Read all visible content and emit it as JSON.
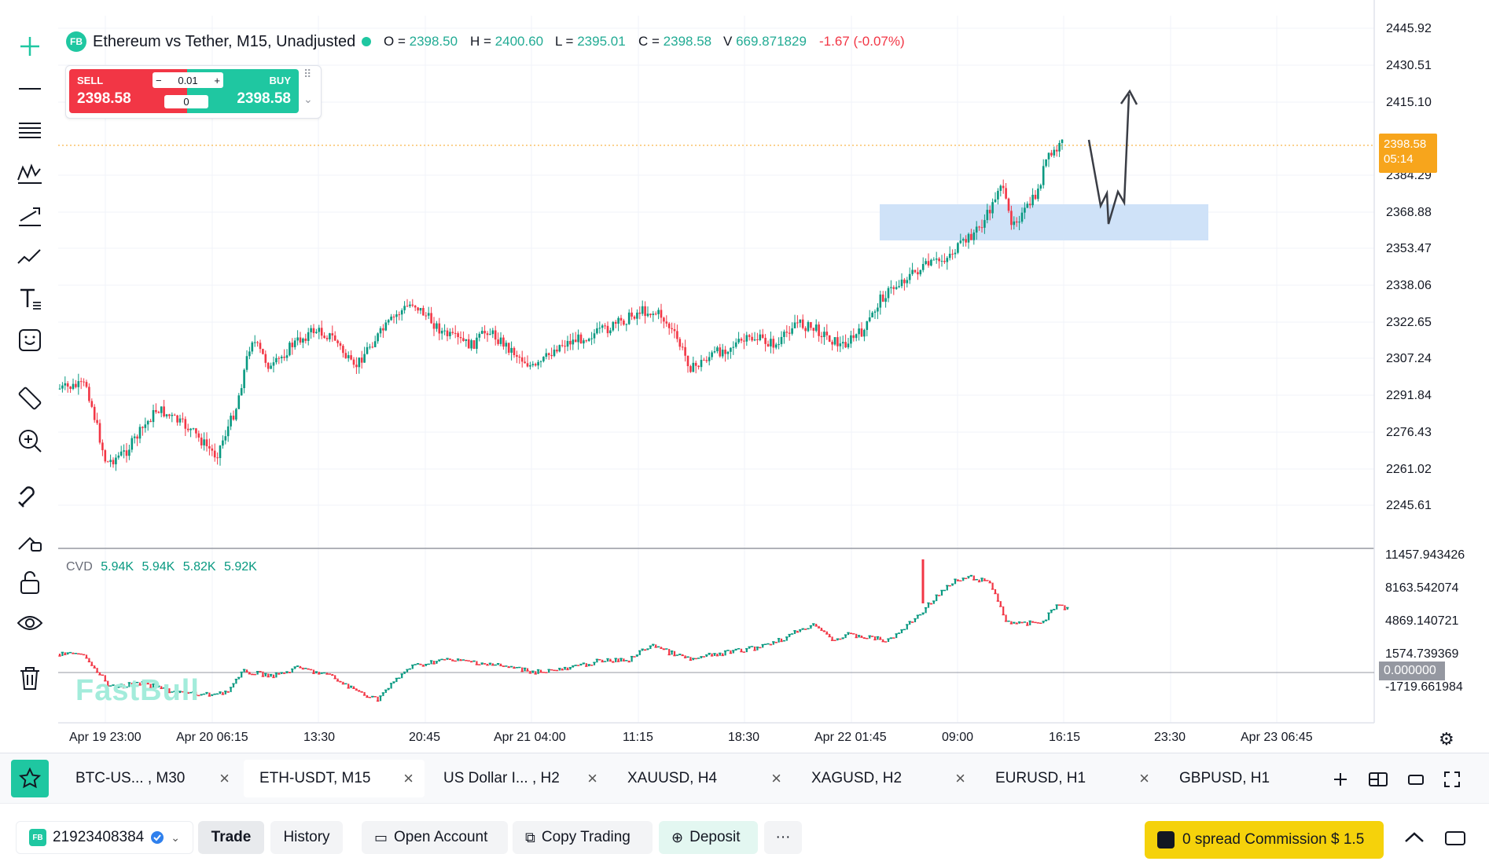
{
  "chart": {
    "logo": "FB",
    "title": "Ethereum vs Tether, M15, Unadjusted",
    "ohlc": {
      "o_label": "O =",
      "o": "2398.50",
      "h_label": "H =",
      "h": "2400.60",
      "l_label": "L =",
      "l": "2395.01",
      "c_label": "C =",
      "c": "2398.58",
      "v_label": "V",
      "v": "669.871829",
      "change": "-1.67 (-0.07%)"
    },
    "current_price": "2398.58",
    "countdown": "05:14",
    "y_axis": [
      "2445.92",
      "2430.51",
      "2415.10",
      "2384.29",
      "2368.88",
      "2353.47",
      "2338.06",
      "2322.65",
      "2307.24",
      "2291.84",
      "2276.43",
      "2261.02",
      "2245.61"
    ],
    "x_axis": [
      "Apr 19 23:00",
      "Apr 20 06:15",
      "13:30",
      "20:45",
      "Apr 21 04:00",
      "11:15",
      "18:30",
      "Apr 22 01:45",
      "09:00",
      "16:15",
      "23:30",
      "Apr 23 06:45"
    ],
    "colors": {
      "up": "#089981",
      "down": "#f23645",
      "zone": "#cfe2f8",
      "price_line": "#f7a51c"
    }
  },
  "trade_widget": {
    "sell_label": "SELL",
    "sell_price": "2398.58",
    "buy_label": "BUY",
    "buy_price": "2398.58",
    "lot": "0.01",
    "amount": "0",
    "minus": "−",
    "plus": "+"
  },
  "cvd": {
    "label": "CVD",
    "values": [
      "5.94K",
      "5.94K",
      "5.82K",
      "5.92K"
    ],
    "y_axis": [
      "11457.943426",
      "8163.542074",
      "4869.140721",
      "1574.739369",
      "-1719.661984"
    ],
    "zero_label": "0.000000",
    "watermark": "FastBull"
  },
  "tabs": [
    {
      "label": "BTC-US... , M30",
      "active": false
    },
    {
      "label": "ETH-USDT, M15",
      "active": true
    },
    {
      "label": "US Dollar I... , H2",
      "active": false
    },
    {
      "label": "XAUUSD, H4",
      "active": false
    },
    {
      "label": "XAGUSD, H2",
      "active": false
    },
    {
      "label": "EURUSD, H1",
      "active": false
    },
    {
      "label": "GBPUSD, H1",
      "active": false
    }
  ],
  "tab_close": "×",
  "bottom": {
    "account_logo": "FB",
    "account": "21923408384",
    "trade": "Trade",
    "history": "History",
    "open_account": "Open Account",
    "copy_trading": "Copy Trading",
    "deposit": "Deposit",
    "more": "···",
    "promo": "0 spread Commission $ 1.5"
  }
}
